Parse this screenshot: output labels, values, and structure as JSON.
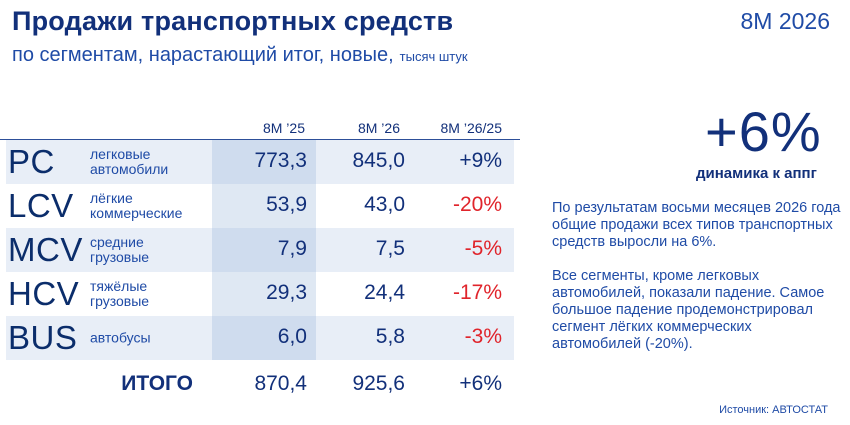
{
  "header": {
    "title": "Продажи транспортных средств",
    "subtitle": "по сегментам, нарастающий итог, новые,",
    "units": "тысяч штук",
    "period": "8M 2026"
  },
  "table": {
    "columns": [
      "8M ’25",
      "8M ’26",
      "8M ’26/25"
    ],
    "rows": [
      {
        "code": "PC",
        "label": "легковые\nавтомобили",
        "v25": "773,3",
        "v26": "845,0",
        "change": "+9%"
      },
      {
        "code": "LCV",
        "label": "лёгкие\nкоммерческие",
        "v25": "53,9",
        "v26": "43,0",
        "change": "-20%"
      },
      {
        "code": "MCV",
        "label": "средние\nгрузовые",
        "v25": "7,9",
        "v26": "7,5",
        "change": "-5%"
      },
      {
        "code": "HCV",
        "label": "тяжёлые\nгрузовые",
        "v25": "29,3",
        "v26": "24,4",
        "change": "-17%"
      },
      {
        "code": "BUS",
        "label": "автобусы",
        "v25": "6,0",
        "v26": "5,8",
        "change": "-3%"
      }
    ],
    "total": {
      "label": "ИТОГО",
      "v25": "870,4",
      "v26": "925,6",
      "change": "+6%"
    }
  },
  "highlight": {
    "value": "+6%",
    "caption": "динамика к аппг"
  },
  "notes": [
    "По результатам восьми месяцев 2026 года общие продажи всех типов транспортных средств выросли на 6%.",
    "Все сегменты, кроме легковых автомобилей, показали падение. Самое большое падение продемонстрировал сегмент лёгких коммерческих автомобилей (-20%)."
  ],
  "source": "Источник: АВТОСТАТ",
  "colors": {
    "primary": "#12307a",
    "accent": "#1f4ba6",
    "negative": "#e0242b",
    "row_shade": "#e8eef7"
  }
}
